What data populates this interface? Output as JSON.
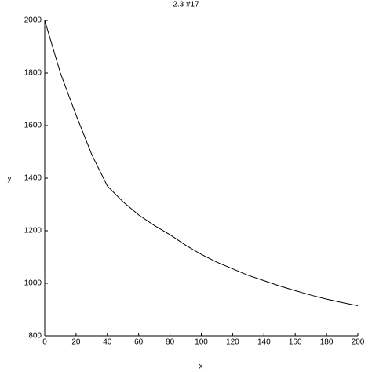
{
  "chart_data": {
    "type": "line",
    "title": "2.3 #17",
    "x_label": "x",
    "y_label": "y",
    "x": [
      0,
      5,
      10,
      20,
      30,
      40,
      50,
      60,
      70,
      80,
      90,
      100,
      110,
      120,
      130,
      140,
      150,
      160,
      170,
      180,
      190,
      200
    ],
    "series": [
      {
        "color": "#000000",
        "values": [
          2000,
          1900,
          1800,
          1640,
          1490,
          1370,
          1310,
          1260,
          1220,
          1185,
          1145,
          1110,
          1080,
          1055,
          1030,
          1010,
          990,
          972,
          955,
          940,
          927,
          915
        ]
      }
    ],
    "xlim": [
      0,
      200
    ],
    "ylim": [
      800,
      2000
    ],
    "xticks": [
      0,
      20,
      40,
      60,
      80,
      100,
      120,
      140,
      160,
      180,
      200
    ],
    "yticks": [
      800,
      1000,
      1200,
      1400,
      1600,
      1800,
      2000
    ]
  }
}
